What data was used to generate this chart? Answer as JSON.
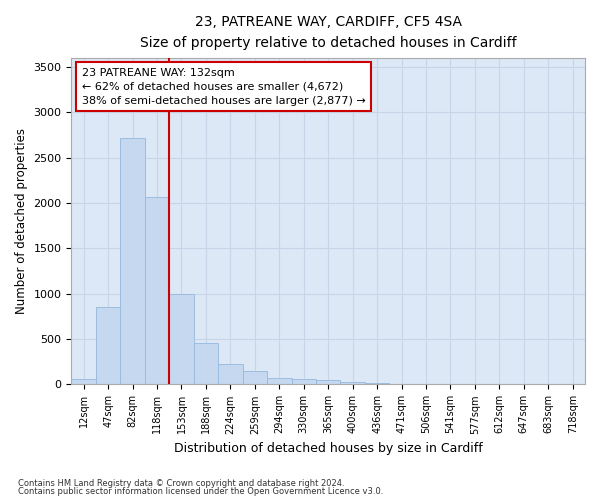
{
  "title1": "23, PATREANE WAY, CARDIFF, CF5 4SA",
  "title2": "Size of property relative to detached houses in Cardiff",
  "xlabel": "Distribution of detached houses by size in Cardiff",
  "ylabel": "Number of detached properties",
  "categories": [
    "12sqm",
    "47sqm",
    "82sqm",
    "118sqm",
    "153sqm",
    "188sqm",
    "224sqm",
    "259sqm",
    "294sqm",
    "330sqm",
    "365sqm",
    "400sqm",
    "436sqm",
    "471sqm",
    "506sqm",
    "541sqm",
    "577sqm",
    "612sqm",
    "647sqm",
    "683sqm",
    "718sqm"
  ],
  "values": [
    60,
    850,
    2720,
    2060,
    1000,
    460,
    220,
    150,
    70,
    55,
    45,
    30,
    20,
    5,
    2,
    1,
    0,
    0,
    0,
    0,
    0
  ],
  "bar_color": "#c5d8f0",
  "bar_edgecolor": "#95b8dc",
  "vline_color": "#cc0000",
  "annotation_line1": "23 PATREANE WAY: 132sqm",
  "annotation_line2": "← 62% of detached houses are smaller (4,672)",
  "annotation_line3": "38% of semi-detached houses are larger (2,877) →",
  "ylim": [
    0,
    3600
  ],
  "yticks": [
    0,
    500,
    1000,
    1500,
    2000,
    2500,
    3000,
    3500
  ],
  "grid_color": "#c8d4e8",
  "background_color": "#dce8f5",
  "fig_background": "#ffffff",
  "footer1": "Contains HM Land Registry data © Crown copyright and database right 2024.",
  "footer2": "Contains public sector information licensed under the Open Government Licence v3.0."
}
